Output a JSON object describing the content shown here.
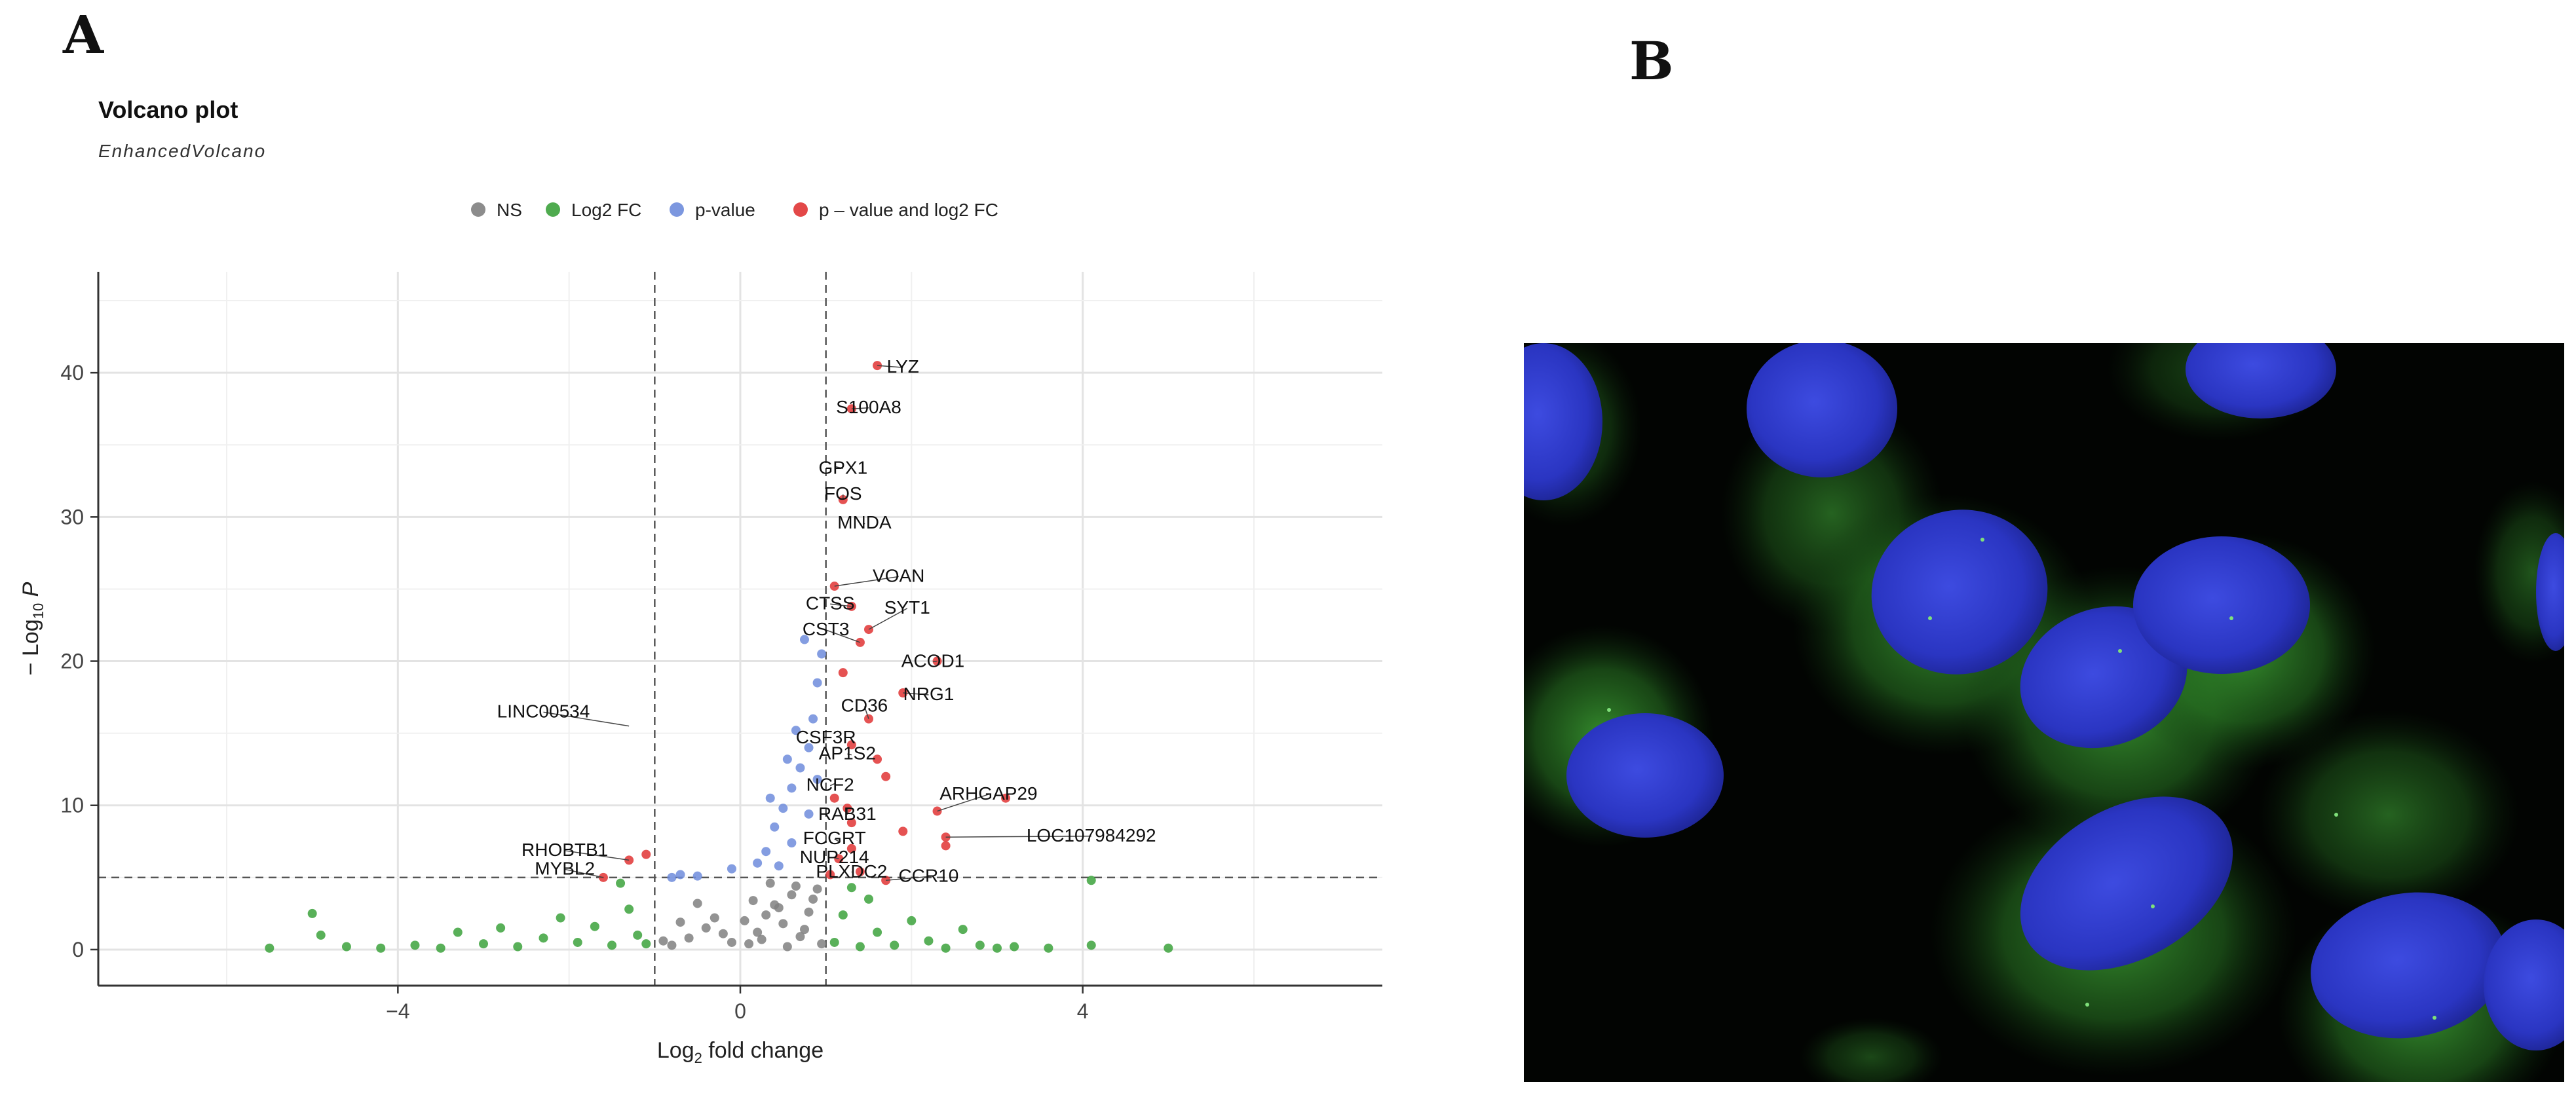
{
  "figure": {
    "panel_a_letter": "A",
    "panel_b_letter": "B"
  },
  "colors": {
    "ns": "#808080",
    "log2fc": "#3CA23C",
    "pvalue": "#6E8CDC",
    "both": "#E03434",
    "nucleus": "#2A36C8",
    "cytoplasm": "#2F8F2A",
    "micro_bg": "#000000"
  },
  "panel_b": {
    "image_type": "fluorescence micrograph",
    "stains": [
      "blue nuclei",
      "green cytoplasmic signal"
    ]
  },
  "chart_data": {
    "type": "scatter",
    "title": "Volcano plot",
    "subtitle": "EnhancedVolcano",
    "xlabel": "Log2 fold change",
    "ylabel": "−Log10 P",
    "xlim": [
      -7.5,
      7.5
    ],
    "ylim": [
      -2.5,
      47
    ],
    "x_ticks": [
      -4,
      0,
      4
    ],
    "y_ticks": [
      0,
      10,
      20,
      30,
      40
    ],
    "grid": true,
    "legend_position": "top",
    "thresholds": {
      "log2fc": [
        -1,
        1
      ],
      "neg_log10_p": 5
    },
    "legend": [
      {
        "key": "ns",
        "label": "NS"
      },
      {
        "key": "log2fc",
        "label": "Log2 FC"
      },
      {
        "key": "pvalue",
        "label": "p-value"
      },
      {
        "key": "both",
        "label": "p – value and log2 FC"
      }
    ],
    "series": [
      {
        "name": "NS",
        "points": [
          [
            -0.8,
            0.3
          ],
          [
            -0.6,
            0.8
          ],
          [
            -0.4,
            1.5
          ],
          [
            -0.3,
            2.2
          ],
          [
            -0.1,
            0.5
          ],
          [
            0.1,
            0.4
          ],
          [
            0.2,
            1.2
          ],
          [
            0.3,
            2.4
          ],
          [
            0.4,
            3.1
          ],
          [
            0.5,
            1.8
          ],
          [
            0.6,
            3.8
          ],
          [
            0.7,
            0.9
          ],
          [
            0.8,
            2.6
          ],
          [
            0.9,
            4.2
          ],
          [
            0.35,
            4.6
          ],
          [
            0.55,
            0.2
          ],
          [
            -0.5,
            3.2
          ],
          [
            -0.7,
            1.9
          ],
          [
            0.15,
            3.4
          ],
          [
            0.65,
            4.4
          ],
          [
            -0.2,
            1.1
          ],
          [
            0.45,
            2.9
          ],
          [
            0.75,
            1.4
          ],
          [
            0.85,
            3.5
          ],
          [
            -0.9,
            0.6
          ],
          [
            0.05,
            2.0
          ],
          [
            0.25,
            0.7
          ],
          [
            0.95,
            0.4
          ]
        ]
      },
      {
        "name": "Log2 FC",
        "points": [
          [
            -5.5,
            0.1
          ],
          [
            -5.0,
            2.5
          ],
          [
            -4.9,
            1.0
          ],
          [
            -4.6,
            0.2
          ],
          [
            -4.2,
            0.1
          ],
          [
            -3.8,
            0.3
          ],
          [
            -3.5,
            0.1
          ],
          [
            -3.3,
            1.2
          ],
          [
            -3.0,
            0.4
          ],
          [
            -2.8,
            1.5
          ],
          [
            -2.6,
            0.2
          ],
          [
            -2.3,
            0.8
          ],
          [
            -2.1,
            2.2
          ],
          [
            -1.9,
            0.5
          ],
          [
            -1.7,
            1.6
          ],
          [
            -1.5,
            0.3
          ],
          [
            -1.3,
            2.8
          ],
          [
            -1.2,
            1.0
          ],
          [
            -1.1,
            0.4
          ],
          [
            1.1,
            0.5
          ],
          [
            1.2,
            2.4
          ],
          [
            1.4,
            0.2
          ],
          [
            1.6,
            1.2
          ],
          [
            1.8,
            0.3
          ],
          [
            2.0,
            2.0
          ],
          [
            2.2,
            0.6
          ],
          [
            2.4,
            0.1
          ],
          [
            2.6,
            1.4
          ],
          [
            2.8,
            0.3
          ],
          [
            3.0,
            0.1
          ],
          [
            3.2,
            0.2
          ],
          [
            3.6,
            0.1
          ],
          [
            4.1,
            4.8
          ],
          [
            4.1,
            0.3
          ],
          [
            5.0,
            0.1
          ],
          [
            1.3,
            4.3
          ],
          [
            1.5,
            3.5
          ],
          [
            -1.4,
            4.6
          ]
        ]
      },
      {
        "name": "p-value",
        "points": [
          [
            -0.7,
            5.2
          ],
          [
            -0.8,
            5.0
          ],
          [
            -0.1,
            5.6
          ],
          [
            0.3,
            6.8
          ],
          [
            0.4,
            8.5
          ],
          [
            0.5,
            9.8
          ],
          [
            0.6,
            11.2
          ],
          [
            0.7,
            12.6
          ],
          [
            0.8,
            14.0
          ],
          [
            0.85,
            16.0
          ],
          [
            0.9,
            18.5
          ],
          [
            0.95,
            20.5
          ],
          [
            0.75,
            21.5
          ],
          [
            0.6,
            7.4
          ],
          [
            0.35,
            10.5
          ],
          [
            0.2,
            6.0
          ],
          [
            0.55,
            13.2
          ],
          [
            0.65,
            15.2
          ],
          [
            0.45,
            5.8
          ],
          [
            0.9,
            11.8
          ],
          [
            -0.5,
            5.1
          ],
          [
            0.8,
            9.4
          ]
        ]
      },
      {
        "name": "p – value and log2 FC",
        "points": [
          [
            1.6,
            40.5
          ],
          [
            1.3,
            37.5
          ],
          [
            1.2,
            31.2
          ],
          [
            1.1,
            25.2
          ],
          [
            1.3,
            23.8
          ],
          [
            1.5,
            22.2
          ],
          [
            1.4,
            21.3
          ],
          [
            2.3,
            20.0
          ],
          [
            1.9,
            17.8
          ],
          [
            1.5,
            16.0
          ],
          [
            1.3,
            14.2
          ],
          [
            1.6,
            13.2
          ],
          [
            1.1,
            10.5
          ],
          [
            1.25,
            9.8
          ],
          [
            2.3,
            9.6
          ],
          [
            3.1,
            10.5
          ],
          [
            1.3,
            8.8
          ],
          [
            1.9,
            8.2
          ],
          [
            2.4,
            7.8
          ],
          [
            2.4,
            7.2
          ],
          [
            1.3,
            7.0
          ],
          [
            1.15,
            6.3
          ],
          [
            1.4,
            5.4
          ],
          [
            1.7,
            4.8
          ],
          [
            1.05,
            5.2
          ],
          [
            -1.1,
            6.6
          ],
          [
            -1.3,
            6.2
          ],
          [
            -1.6,
            5.0
          ],
          [
            1.7,
            12.0
          ],
          [
            1.2,
            19.2
          ]
        ]
      }
    ],
    "labels": [
      {
        "text": "LYZ",
        "x": 1.6,
        "y": 40.5,
        "tx": 1.9,
        "ty": 40.0
      },
      {
        "text": "S100A8",
        "x": 1.3,
        "y": 37.5,
        "tx": 1.5,
        "ty": 37.2
      },
      {
        "text": "GPX1",
        "x": 1.1,
        "y": 33.5,
        "tx": 1.2,
        "ty": 33.0
      },
      {
        "text": "FOS",
        "x": 1.2,
        "y": 31.2,
        "tx": 1.2,
        "ty": 31.2
      },
      {
        "text": "MNDA",
        "x": 1.45,
        "y": 29.5,
        "tx": 1.45,
        "ty": 29.2
      },
      {
        "text": "VOAN",
        "x": 1.1,
        "y": 25.2,
        "tx": 1.85,
        "ty": 25.5
      },
      {
        "text": "CTSS",
        "x": 1.3,
        "y": 23.8,
        "tx": 1.05,
        "ty": 23.6
      },
      {
        "text": "SYT1",
        "x": 1.5,
        "y": 22.2,
        "tx": 1.95,
        "ty": 23.3
      },
      {
        "text": "CST3",
        "x": 1.4,
        "y": 21.3,
        "tx": 1.0,
        "ty": 21.8
      },
      {
        "text": "ACOD1",
        "x": 2.3,
        "y": 20.0,
        "tx": 2.25,
        "ty": 19.6
      },
      {
        "text": "LINC00534",
        "x": -1.3,
        "y": 15.5,
        "tx": -2.3,
        "ty": 16.1
      },
      {
        "text": "NRG1",
        "x": 1.9,
        "y": 17.8,
        "tx": 2.2,
        "ty": 17.3
      },
      {
        "text": "CD36",
        "x": 1.5,
        "y": 16.0,
        "tx": 1.45,
        "ty": 16.5
      },
      {
        "text": "CSF3R",
        "x": 1.0,
        "y": 14.5,
        "tx": 1.0,
        "ty": 14.3
      },
      {
        "text": "AP1S2",
        "x": 1.3,
        "y": 13.5,
        "tx": 1.25,
        "ty": 13.2
      },
      {
        "text": "NCF2",
        "x": 1.1,
        "y": 11.5,
        "tx": 1.05,
        "ty": 11.0
      },
      {
        "text": "ARHGAP29",
        "x": 2.3,
        "y": 9.6,
        "tx": 2.9,
        "ty": 10.4
      },
      {
        "text": "RAB31",
        "x": 1.25,
        "y": 9.8,
        "tx": 1.25,
        "ty": 9.0
      },
      {
        "text": "RHOBTB1",
        "x": -1.3,
        "y": 6.2,
        "tx": -2.05,
        "ty": 6.5
      },
      {
        "text": "LOC107984292",
        "x": 2.4,
        "y": 7.8,
        "tx": 4.1,
        "ty": 7.5
      },
      {
        "text": "FCGRT",
        "x": 1.15,
        "y": 7.5,
        "tx": 1.1,
        "ty": 7.3
      },
      {
        "text": "NUP214",
        "x": 1.15,
        "y": 6.3,
        "tx": 1.1,
        "ty": 6.0
      },
      {
        "text": "MYBL2",
        "x": -1.6,
        "y": 5.0,
        "tx": -2.05,
        "ty": 5.2
      },
      {
        "text": "PLXDC2",
        "x": 1.3,
        "y": 5.4,
        "tx": 1.3,
        "ty": 5.0
      },
      {
        "text": "CCR10",
        "x": 1.7,
        "y": 4.8,
        "tx": 2.2,
        "ty": 4.7
      }
    ]
  }
}
